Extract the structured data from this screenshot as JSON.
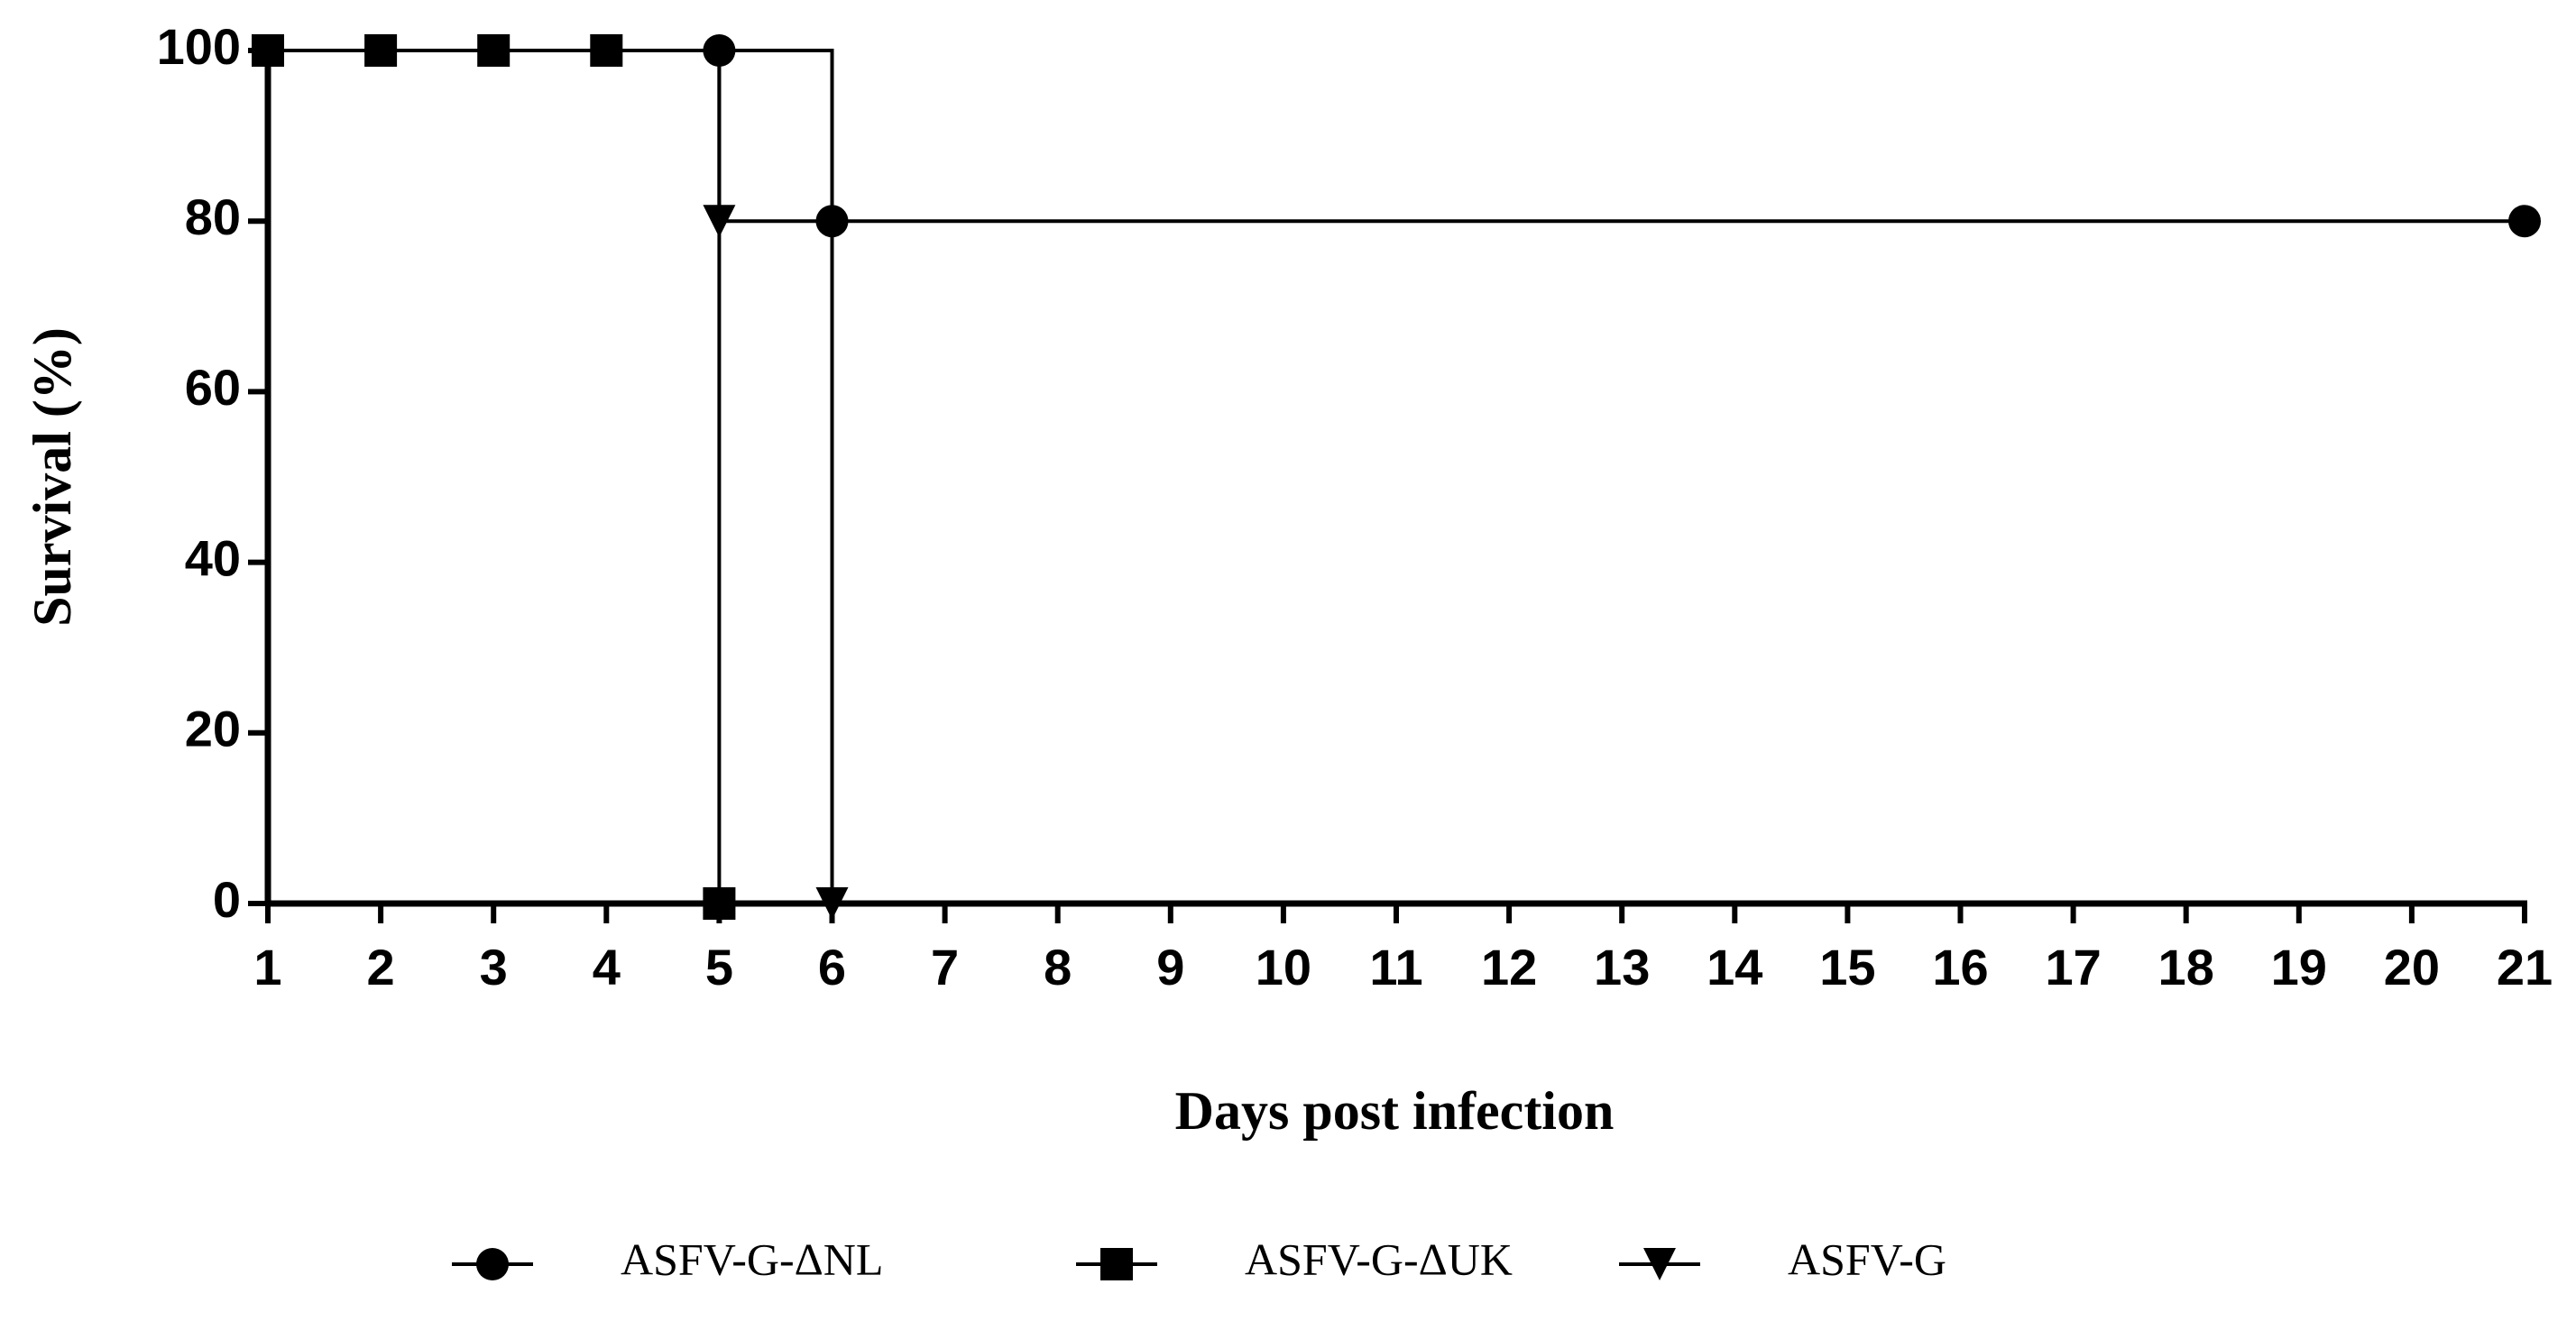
{
  "chart_data": {
    "type": "step",
    "xlabel": "Days post infection",
    "ylabel": "Survival (%)",
    "xlim": [
      1,
      21
    ],
    "xticks": [
      1,
      2,
      3,
      4,
      5,
      6,
      7,
      8,
      9,
      10,
      11,
      12,
      13,
      14,
      15,
      16,
      17,
      18,
      19,
      20,
      21
    ],
    "ylim": [
      0,
      100
    ],
    "yticks": [
      0,
      20,
      40,
      60,
      80,
      100
    ],
    "series": [
      {
        "name": "ASFV-G-ΔNL",
        "color": "#000000",
        "marker": "circle",
        "x": [
          1,
          2,
          3,
          4,
          5,
          6,
          21
        ],
        "values": [
          100,
          100,
          100,
          100,
          100,
          80,
          80
        ]
      },
      {
        "name": "ASFV-G",
        "color": "#000000",
        "marker": "triangle-down",
        "x": [
          1,
          2,
          3,
          4,
          5,
          6
        ],
        "values": [
          100,
          100,
          100,
          100,
          80,
          0
        ]
      },
      {
        "name": "ASFV-G-ΔUK",
        "color": "#000000",
        "marker": "square",
        "x": [
          1,
          2,
          3,
          4,
          5
        ],
        "values": [
          100,
          100,
          100,
          100,
          0
        ]
      }
    ],
    "legend_order": [
      0,
      2,
      1
    ]
  }
}
